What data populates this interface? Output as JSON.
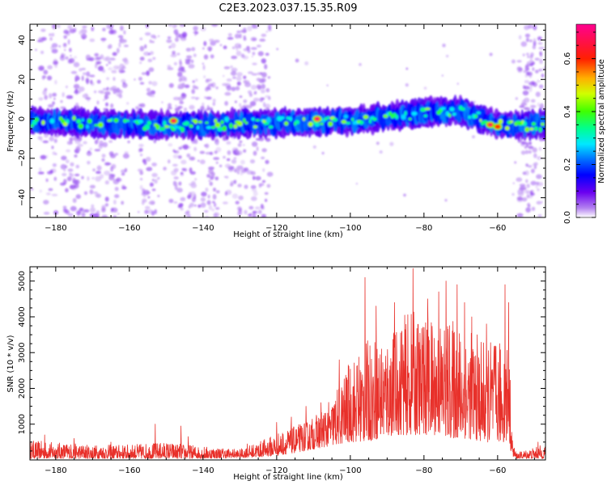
{
  "title": "C2E3.2023.037.15.35.R09",
  "chart_data": [
    {
      "type": "heatmap",
      "xlabel": "Height of straight line (km)",
      "ylabel": "Frequency (Hz)",
      "xlim": [
        -187,
        -47
      ],
      "ylim": [
        -50,
        48
      ],
      "xticks": [
        -180,
        -160,
        -140,
        -120,
        -100,
        -80,
        -60
      ],
      "yticks": [
        -40,
        -20,
        0,
        20,
        40
      ],
      "colorbar": {
        "label": "Normalized spectral amplitude",
        "range": [
          0,
          0.73
        ],
        "ticks": [
          0.0,
          0.2,
          0.4,
          0.6
        ]
      },
      "band": {
        "center_hz": [
          [
            -187,
            -1
          ],
          [
            -160,
            -3
          ],
          [
            -140,
            -3
          ],
          [
            -120,
            -2
          ],
          [
            -100,
            -1
          ],
          [
            -80,
            3
          ],
          [
            -70,
            4
          ],
          [
            -60,
            -3
          ],
          [
            -56,
            -3
          ],
          [
            -47,
            -3
          ]
        ],
        "half_width_hz": 6
      },
      "peaks": [
        {
          "x": -148,
          "y": -1,
          "amplitude": 0.7
        },
        {
          "x": -109,
          "y": 0,
          "amplitude": 0.72
        },
        {
          "x": -62,
          "y": -3,
          "amplitude": 0.7
        },
        {
          "x": -60,
          "y": -4,
          "amplitude": 0.6
        }
      ],
      "noise_columns_km": [
        -182,
        -176,
        -172,
        -167,
        -163,
        -155,
        -147,
        -144,
        -138,
        -132,
        -128,
        -124,
        -52,
        -50
      ]
    },
    {
      "type": "line",
      "xlabel": "Height of straight line (km)",
      "ylabel": "SNR (10 * v/v)",
      "xlim": [
        -187,
        -47
      ],
      "ylim": [
        0,
        5400
      ],
      "xticks": [
        -180,
        -160,
        -140,
        -120,
        -100,
        -80,
        -60
      ],
      "yticks": [
        1000,
        2000,
        3000,
        4000,
        5000
      ],
      "color": "#e8302a",
      "envelope": {
        "x": [
          -187,
          -170,
          -160,
          -150,
          -140,
          -130,
          -125,
          -120,
          -115,
          -110,
          -105,
          -100,
          -96,
          -92,
          -88,
          -84,
          -80,
          -76,
          -72,
          -68,
          -64,
          -60,
          -57,
          -56,
          -55,
          -50,
          -47
        ],
        "upper": [
          550,
          420,
          430,
          500,
          380,
          300,
          500,
          750,
          950,
          1200,
          1700,
          2800,
          3300,
          3500,
          3700,
          4200,
          4000,
          4000,
          3900,
          3700,
          3400,
          3300,
          3500,
          600,
          200,
          350,
          450
        ],
        "lower": [
          40,
          40,
          40,
          40,
          40,
          60,
          80,
          120,
          200,
          300,
          400,
          500,
          500,
          600,
          700,
          700,
          700,
          700,
          600,
          600,
          500,
          500,
          500,
          100,
          40,
          40,
          40
        ]
      },
      "spikes": [
        {
          "x": -183,
          "y": 700
        },
        {
          "x": -175,
          "y": 600
        },
        {
          "x": -165,
          "y": 500
        },
        {
          "x": -153,
          "y": 1000
        },
        {
          "x": -146,
          "y": 950
        },
        {
          "x": -144,
          "y": 650
        },
        {
          "x": -136,
          "y": 300
        },
        {
          "x": -128,
          "y": 450
        },
        {
          "x": -120,
          "y": 1050
        },
        {
          "x": -116,
          "y": 1200
        },
        {
          "x": -112,
          "y": 1500
        },
        {
          "x": -108,
          "y": 1600
        },
        {
          "x": -103,
          "y": 2800
        },
        {
          "x": -101,
          "y": 2300
        },
        {
          "x": -96,
          "y": 5100
        },
        {
          "x": -93,
          "y": 4300
        },
        {
          "x": -90,
          "y": 2100
        },
        {
          "x": -88,
          "y": 4400
        },
        {
          "x": -86,
          "y": 3600
        },
        {
          "x": -83,
          "y": 5350
        },
        {
          "x": -80,
          "y": 3700
        },
        {
          "x": -79,
          "y": 4500
        },
        {
          "x": -76,
          "y": 4700
        },
        {
          "x": -74,
          "y": 5000
        },
        {
          "x": -71,
          "y": 4900
        },
        {
          "x": -69,
          "y": 4400
        },
        {
          "x": -67,
          "y": 4000
        },
        {
          "x": -63,
          "y": 3800
        },
        {
          "x": -61,
          "y": 3000
        },
        {
          "x": -58,
          "y": 4900
        },
        {
          "x": -57,
          "y": 4400
        },
        {
          "x": -49,
          "y": 500
        }
      ]
    }
  ]
}
